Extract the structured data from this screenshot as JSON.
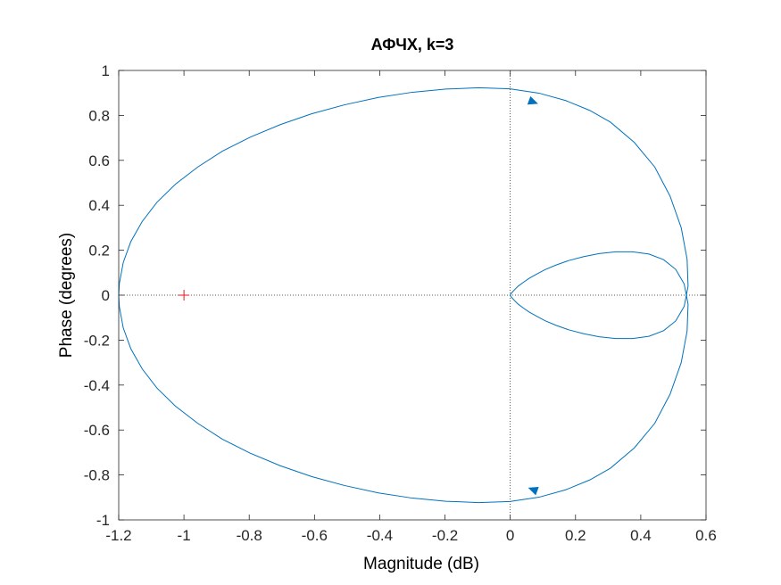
{
  "chart_data": {
    "type": "line",
    "title": "АФЧХ, k=3",
    "xlabel": "Magnitude (dB)",
    "ylabel": "Phase (degrees)",
    "xlim": [
      -1.2,
      0.6
    ],
    "ylim": [
      -1,
      1
    ],
    "x_ticks": [
      "-1.2",
      "-1",
      "-0.8",
      "-0.6",
      "-0.4",
      "-0.2",
      "0",
      "0.2",
      "0.4",
      "0.6"
    ],
    "y_ticks": [
      "1",
      "0.8",
      "0.6",
      "0.4",
      "0.2",
      "0",
      "-0.2",
      "-0.4",
      "-0.6",
      "-0.8",
      "-1"
    ],
    "grid": false,
    "reference_lines": {
      "x": 0,
      "y": 0,
      "style": "dotted"
    },
    "critical_point": {
      "x": -1,
      "y": 0,
      "marker": "+",
      "color": "#e31a1c"
    },
    "series": [
      {
        "color": "#0072bd",
        "x": [
          -1.2,
          -1.198,
          -1.186,
          -1.163,
          -1.128,
          -1.083,
          -1.026,
          -0.958,
          -0.882,
          -0.797,
          -0.705,
          -0.609,
          -0.508,
          -0.404,
          -0.3,
          -0.197,
          -0.097,
          -0.001,
          0.088,
          0.17,
          0.244,
          0.307,
          0.38,
          0.443,
          0.49,
          0.524,
          0.542,
          0.545,
          0.533,
          0.507,
          0.47,
          0.425,
          0.375,
          0.323,
          0.272,
          0.224,
          0.179,
          0.14,
          0.107,
          0.08,
          0.057,
          0.04,
          0.025,
          0.015,
          0.008,
          0.003,
          0.001,
          0.0
        ],
        "y": [
          0.0,
          -0.052,
          -0.146,
          -0.238,
          -0.328,
          -0.413,
          -0.494,
          -0.57,
          -0.641,
          -0.703,
          -0.759,
          -0.807,
          -0.847,
          -0.88,
          -0.903,
          -0.917,
          -0.923,
          -0.918,
          -0.899,
          -0.866,
          -0.822,
          -0.77,
          -0.68,
          -0.57,
          -0.44,
          -0.3,
          -0.16,
          -0.04,
          0.05,
          0.115,
          0.158,
          0.183,
          0.193,
          0.193,
          0.185,
          0.171,
          0.154,
          0.134,
          0.114,
          0.093,
          0.074,
          0.057,
          0.041,
          0.027,
          0.016,
          0.008,
          0.003,
          0.0
        ],
        "mirror_about_x_axis": true
      }
    ],
    "arrows": [
      {
        "x": 0.07,
        "y": 0.86,
        "direction": "right-down"
      },
      {
        "x": 0.07,
        "y": -0.865,
        "direction": "left-up"
      }
    ]
  }
}
